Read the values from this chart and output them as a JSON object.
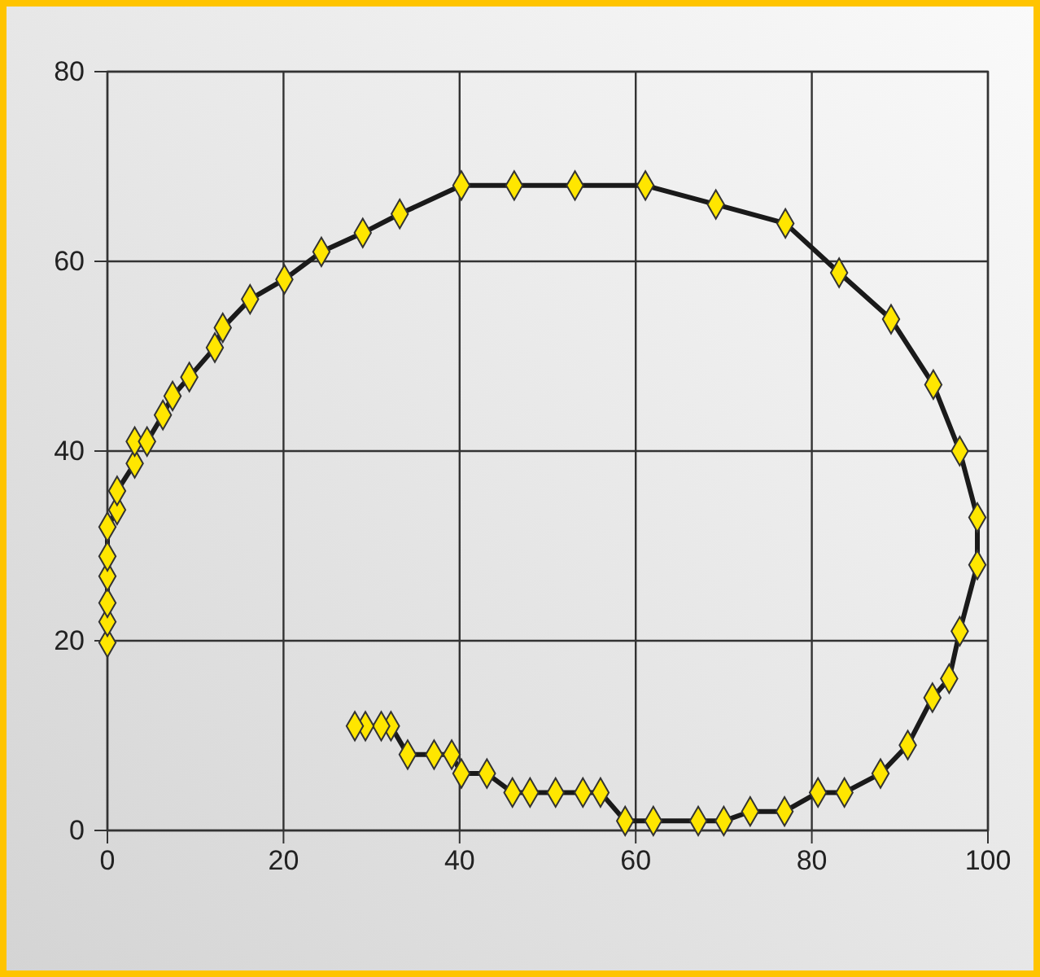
{
  "chart_data": {
    "type": "line",
    "marker": "diamond",
    "grid": true,
    "xlim": [
      0,
      100
    ],
    "xticks": [
      0,
      20,
      40,
      60,
      80,
      100
    ],
    "ylim": [
      0,
      80
    ],
    "yticks": [
      0,
      20,
      40,
      60,
      80
    ],
    "series": [
      {
        "color": "#1a1a1a",
        "x": [
          0,
          0,
          0,
          0,
          0,
          0,
          1.1,
          1.1,
          3.1,
          3.1,
          4.5,
          6.3,
          7.4,
          9.3,
          12.2,
          13.1,
          16.2,
          20.1,
          24.3,
          29,
          33.2,
          40.2,
          46.2,
          53.1,
          61.1,
          69.1,
          77,
          83.1,
          89,
          93.8,
          96.8,
          98.8,
          98.8,
          96.8,
          95.6,
          93.7,
          90.9,
          87.8,
          83.7,
          80.7,
          76.9,
          73,
          70,
          67.1,
          62,
          58.8,
          56,
          54,
          50.9,
          48,
          46,
          43.1,
          40.2,
          39.1,
          37.1,
          34.1,
          32.2,
          31.1,
          29.3,
          28.1
        ],
        "values": [
          19.8,
          22,
          24,
          26.8,
          28.9,
          32,
          33.8,
          35.8,
          38.7,
          41,
          41,
          43.8,
          45.8,
          47.8,
          50.9,
          53,
          56,
          58.1,
          61,
          63,
          65,
          68,
          68,
          68,
          68,
          66,
          64,
          58.8,
          53.9,
          47,
          40,
          33,
          28,
          21,
          16,
          14,
          9,
          6,
          4,
          4,
          2,
          2,
          1,
          1,
          1,
          1,
          4,
          4,
          4,
          4,
          4,
          6,
          6,
          8,
          8,
          8,
          11,
          11,
          11,
          11
        ]
      }
    ]
  }
}
